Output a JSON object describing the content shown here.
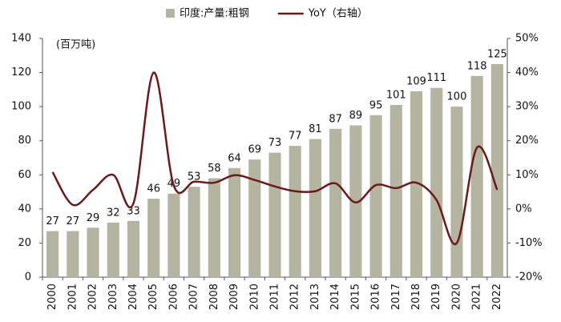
{
  "chart_data": {
    "type": "bar",
    "y_unit_label": "(百万吨)",
    "categories": [
      "2000",
      "2001",
      "2002",
      "2003",
      "2004",
      "2005",
      "2006",
      "2007",
      "2008",
      "2009",
      "2010",
      "2011",
      "2012",
      "2013",
      "2014",
      "2015",
      "2016",
      "2017",
      "2018",
      "2019",
      "2020",
      "2021",
      "2022"
    ],
    "series": [
      {
        "name": "印度:产量:粗钢",
        "type": "bar",
        "color": "#b4b4a1",
        "values": [
          27,
          27,
          29,
          32,
          33,
          46,
          49,
          53,
          58,
          64,
          69,
          73,
          77,
          81,
          87,
          89,
          95,
          101,
          109,
          111,
          100,
          118,
          125
        ]
      },
      {
        "name": "YoY（右轴）",
        "type": "line",
        "axis": "y2",
        "color": "#6b1919",
        "values": [
          10.8,
          1.2,
          5.6,
          10,
          1.6,
          40,
          6.8,
          8,
          7.7,
          9.9,
          8.5,
          6.6,
          5.2,
          5.2,
          7.5,
          1.9,
          7,
          6.1,
          7.7,
          2.6,
          -10,
          18,
          5.6
        ]
      }
    ],
    "ylim": [
      0,
      140
    ],
    "yticks": [
      0,
      20,
      40,
      60,
      80,
      100,
      120,
      140
    ],
    "y2lim": [
      -20,
      50
    ],
    "y2ticks": [
      {
        "value": -20,
        "label": "-20%"
      },
      {
        "value": -10,
        "label": "-10%"
      },
      {
        "value": 0,
        "label": "0%"
      },
      {
        "value": 10,
        "label": "10%"
      },
      {
        "value": 20,
        "label": "20%"
      },
      {
        "value": 30,
        "label": "30%"
      },
      {
        "value": 40,
        "label": "40%"
      },
      {
        "value": 50,
        "label": "50%"
      }
    ],
    "grid": false,
    "legend": "top"
  }
}
